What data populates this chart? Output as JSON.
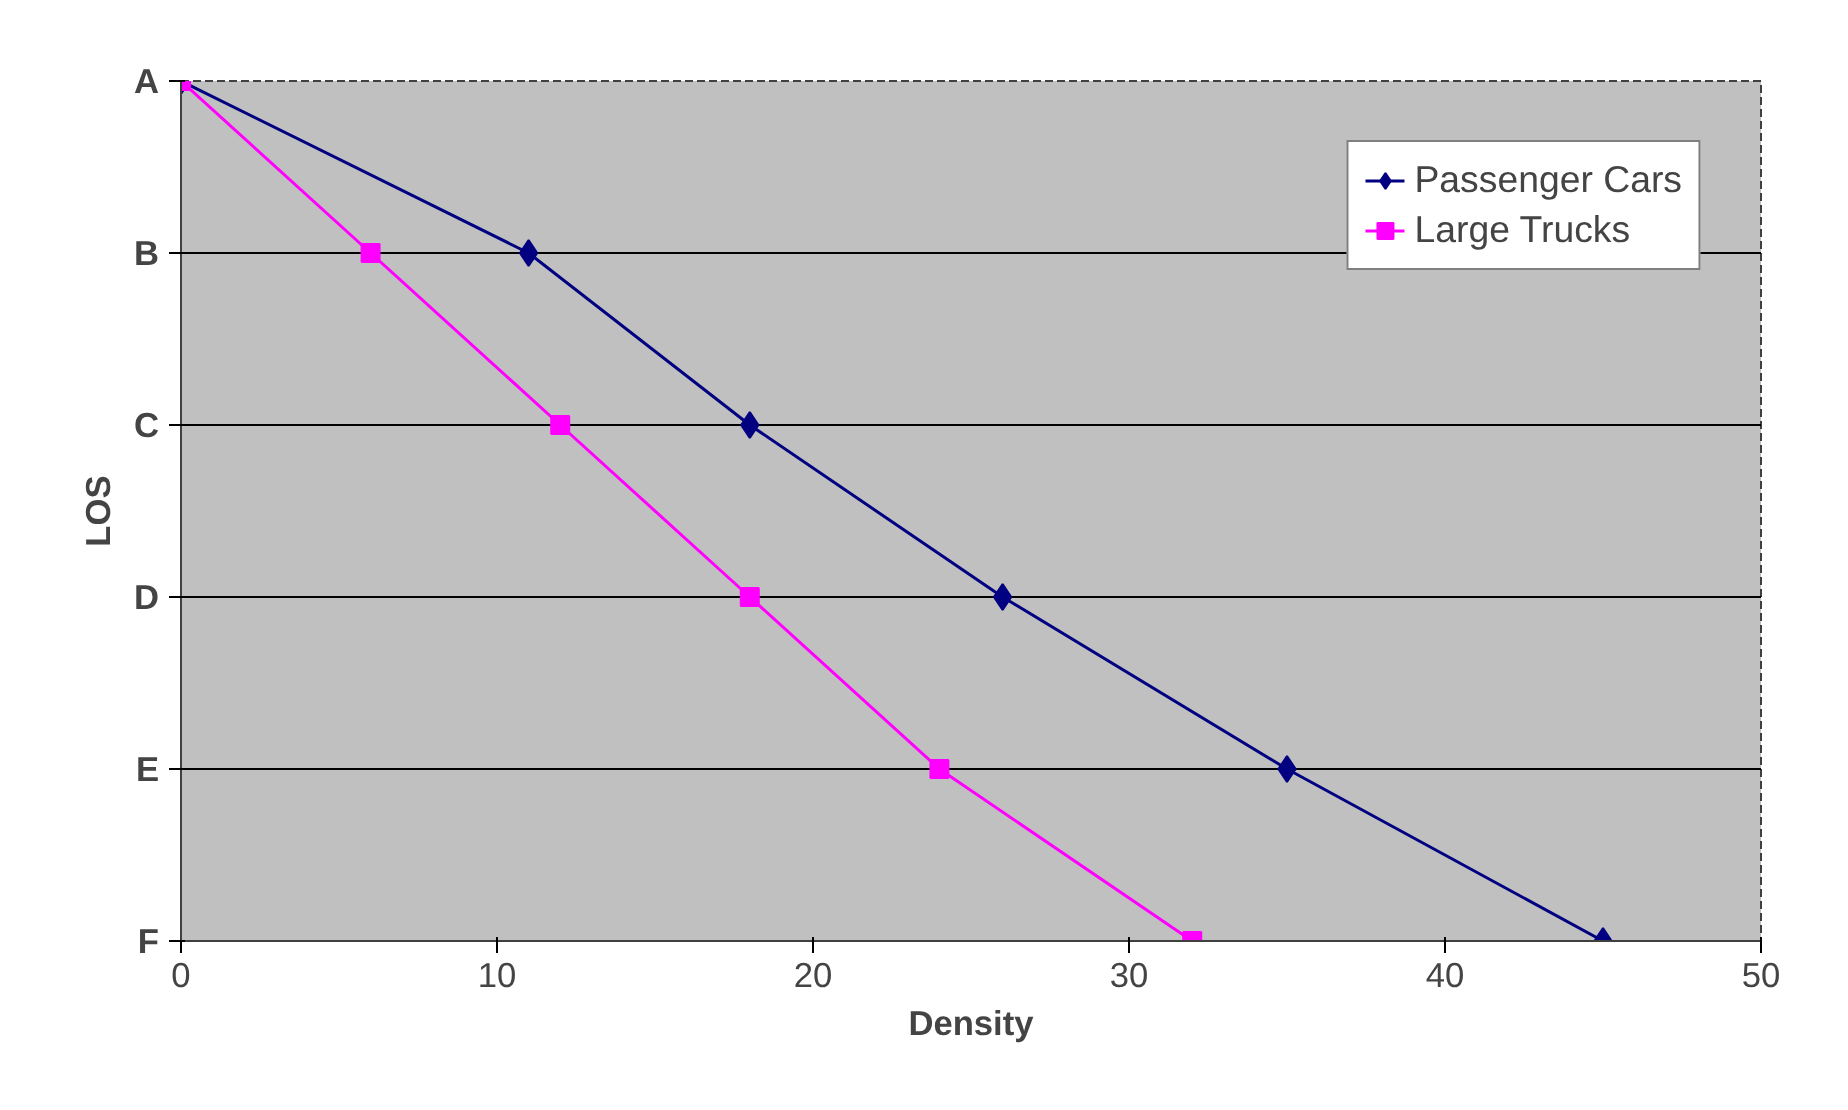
{
  "chart_data": {
    "type": "line",
    "orientation": "horizontal",
    "xlabel": "Density",
    "ylabel": "LOS",
    "xlim": [
      0,
      50
    ],
    "xticks": [
      0,
      10,
      20,
      30,
      40,
      50
    ],
    "categories": [
      "A",
      "B",
      "C",
      "D",
      "E",
      "F"
    ],
    "grid": "y",
    "legend": "top right",
    "series": [
      {
        "name": "Passenger Cars",
        "color": "#000080",
        "marker": "diamond",
        "values": [
          0,
          11,
          18,
          26,
          35,
          45
        ]
      },
      {
        "name": "Large Trucks",
        "color": "#ff00ff",
        "marker": "square",
        "values": [
          0,
          6,
          12,
          18,
          24,
          32
        ]
      }
    ]
  }
}
